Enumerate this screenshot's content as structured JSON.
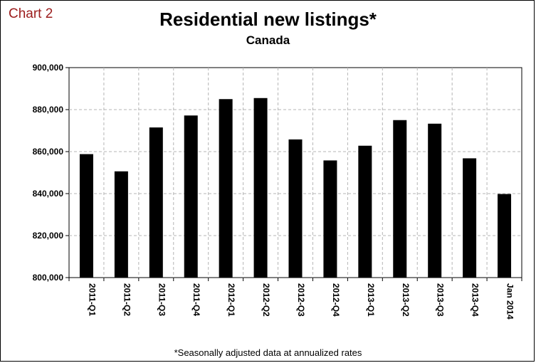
{
  "chart_label": "Chart 2",
  "footnote": "*Seasonally adjusted data at annualized rates",
  "chart_data": {
    "type": "bar",
    "title": "Residential new listings*",
    "subtitle": "Canada",
    "categories": [
      "2011-Q1",
      "2011-Q2",
      "2011-Q3",
      "2011-Q4",
      "2012-Q1",
      "2012-Q2",
      "2012-Q3",
      "2012-Q4",
      "2013-Q1",
      "2013-Q2",
      "2013-Q3",
      "2013-Q4",
      "Jan 2014"
    ],
    "values": [
      858800,
      850600,
      871500,
      877200,
      885000,
      885500,
      865800,
      855800,
      862800,
      875000,
      873300,
      856800,
      839800
    ],
    "ylim": [
      800000,
      900000
    ],
    "yticks": [
      "900,000",
      "880,000",
      "860,000",
      "840,000",
      "820,000",
      "800,000"
    ],
    "ytick_values": [
      900000,
      880000,
      860000,
      840000,
      820000,
      800000
    ],
    "grid": true,
    "bar_color": "#000000"
  }
}
